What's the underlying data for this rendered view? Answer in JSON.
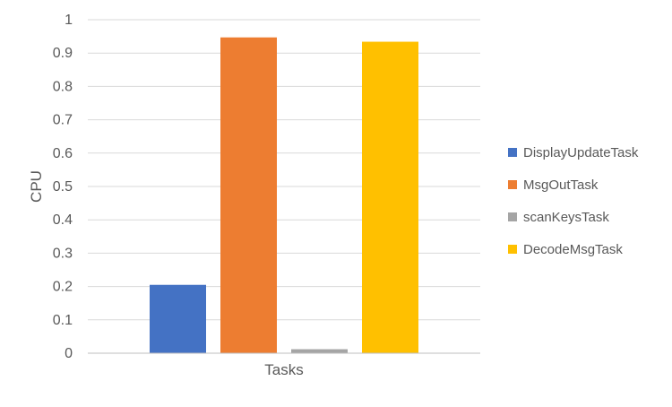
{
  "chart_data": {
    "type": "bar",
    "categories": [
      "Tasks"
    ],
    "series": [
      {
        "name": "DisplayUpdateTask",
        "color": "#4472C4",
        "values": [
          0.205
        ]
      },
      {
        "name": "MsgOutTask",
        "color": "#ED7D31",
        "values": [
          0.947
        ]
      },
      {
        "name": "scanKeysTask",
        "color": "#A5A5A5",
        "values": [
          0.012
        ]
      },
      {
        "name": "DecodeMsgTask",
        "color": "#FFC000",
        "values": [
          0.934
        ]
      }
    ],
    "title": "",
    "xlabel": "Tasks",
    "ylabel": "CPU",
    "ylim": [
      0,
      1
    ],
    "yticks": [
      "0",
      "0.1",
      "0.2",
      "0.3",
      "0.4",
      "0.5",
      "0.6",
      "0.7",
      "0.8",
      "0.9",
      "1"
    ],
    "grid": true,
    "legend_position": "right"
  }
}
